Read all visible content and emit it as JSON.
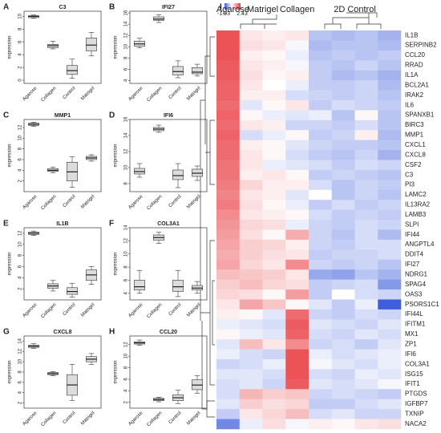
{
  "chart_data": [
    {
      "type": "box",
      "label": "A",
      "title": "C3",
      "ylabel": "expression",
      "categories": [
        "Agarose",
        "Collagen",
        "Control",
        "Matrigel"
      ],
      "ylim": [
        -0.5,
        10.8
      ],
      "yticks": [
        0,
        2,
        4,
        6,
        8,
        10
      ],
      "boxes": [
        {
          "min": 9.7,
          "q1": 9.8,
          "median": 10,
          "q3": 10.1,
          "max": 10.2
        },
        {
          "min": 4.9,
          "q1": 5.1,
          "median": 5.4,
          "q3": 5.6,
          "max": 6.1
        },
        {
          "min": 0.3,
          "q1": 0.9,
          "median": 1.5,
          "q3": 2.3,
          "max": 3.3
        },
        {
          "min": 3.8,
          "q1": 4.6,
          "median": 5.5,
          "q3": 6.6,
          "max": 7.5
        }
      ]
    },
    {
      "type": "box",
      "label": "B",
      "title": "IFI27",
      "ylabel": "expression",
      "categories": [
        "Agarose",
        "Collagen",
        "Control",
        "Matrigel"
      ],
      "ylim": [
        3.5,
        16.3
      ],
      "yticks": [
        4,
        6,
        8,
        10,
        12,
        14,
        16
      ],
      "boxes": [
        {
          "min": 9.8,
          "q1": 10.1,
          "median": 10.5,
          "q3": 11,
          "max": 11.5
        },
        {
          "min": 14.3,
          "q1": 14.7,
          "median": 14.9,
          "q3": 15.3,
          "max": 15.7
        },
        {
          "min": 4.5,
          "q1": 5,
          "median": 5.6,
          "q3": 6.5,
          "max": 7.5
        },
        {
          "min": 4.8,
          "q1": 5.2,
          "median": 5.5,
          "q3": 6.3,
          "max": 6.9
        }
      ]
    },
    {
      "type": "box",
      "label": "C",
      "title": "MMP1",
      "ylabel": "expression",
      "categories": [
        "Agarose",
        "Collagen",
        "Control",
        "Matrigel"
      ],
      "ylim": [
        0,
        13.5
      ],
      "yticks": [
        2,
        4,
        6,
        8,
        10,
        12
      ],
      "boxes": [
        {
          "min": 12.2,
          "q1": 12.4,
          "median": 12.6,
          "q3": 12.8,
          "max": 13
        },
        {
          "min": 3.5,
          "q1": 3.8,
          "median": 4,
          "q3": 4.3,
          "max": 4.6
        },
        {
          "min": 0.8,
          "q1": 2,
          "median": 3.7,
          "q3": 5.5,
          "max": 6.5
        },
        {
          "min": 5.7,
          "q1": 6,
          "median": 6.3,
          "q3": 6.6,
          "max": 6.9
        }
      ]
    },
    {
      "type": "box",
      "label": "D",
      "title": "IFI6",
      "ylabel": "expression",
      "categories": [
        "Agarose",
        "Collagen",
        "Control",
        "Matrigel"
      ],
      "ylim": [
        7,
        16
      ],
      "yticks": [
        8,
        10,
        12,
        14,
        16
      ],
      "boxes": [
        {
          "min": 8.8,
          "q1": 9.2,
          "median": 9.5,
          "q3": 9.9,
          "max": 10.5
        },
        {
          "min": 14.4,
          "q1": 14.6,
          "median": 14.8,
          "q3": 15,
          "max": 15.3
        },
        {
          "min": 7.5,
          "q1": 8.5,
          "median": 9,
          "q3": 9.7,
          "max": 10.5
        },
        {
          "min": 8.4,
          "q1": 8.9,
          "median": 9.3,
          "q3": 9.8,
          "max": 10.2
        }
      ]
    },
    {
      "type": "box",
      "label": "E",
      "title": "IL1B",
      "ylabel": "expression",
      "categories": [
        "Agarose",
        "Collagen",
        "Control",
        "Matrigel"
      ],
      "ylim": [
        0,
        13
      ],
      "yticks": [
        2,
        4,
        6,
        8,
        10,
        12
      ],
      "boxes": [
        {
          "min": 11.6,
          "q1": 11.8,
          "median": 12,
          "q3": 12.2,
          "max": 12.4
        },
        {
          "min": 1.6,
          "q1": 2.1,
          "median": 2.5,
          "q3": 2.9,
          "max": 3.5
        },
        {
          "min": 0.5,
          "q1": 1,
          "median": 1.5,
          "q3": 2.2,
          "max": 3
        },
        {
          "min": 2.8,
          "q1": 3.5,
          "median": 4.5,
          "q3": 5.4,
          "max": 6
        }
      ]
    },
    {
      "type": "box",
      "label": "F",
      "title": "COL3A1",
      "ylabel": "expression",
      "categories": [
        "Agarose",
        "Collagen",
        "Control",
        "Matrigel"
      ],
      "ylim": [
        3,
        14
      ],
      "yticks": [
        4,
        6,
        8,
        10,
        12,
        14
      ],
      "boxes": [
        {
          "min": 4,
          "q1": 4.5,
          "median": 5,
          "q3": 6,
          "max": 7.5
        },
        {
          "min": 11.6,
          "q1": 12.1,
          "median": 12.5,
          "q3": 12.9,
          "max": 13.3
        },
        {
          "min": 3.5,
          "q1": 4.3,
          "median": 5,
          "q3": 6,
          "max": 7.5
        },
        {
          "min": 4,
          "q1": 4.5,
          "median": 4.8,
          "q3": 5.2,
          "max": 5.8
        }
      ]
    },
    {
      "type": "box",
      "label": "G",
      "title": "CXCL8",
      "ylabel": "expression",
      "categories": [
        "Agarose",
        "Collagen",
        "Control",
        "Matrigel"
      ],
      "ylim": [
        1,
        15
      ],
      "yticks": [
        2,
        4,
        6,
        8,
        10,
        12,
        14
      ],
      "boxes": [
        {
          "min": 12.6,
          "q1": 12.8,
          "median": 13,
          "q3": 13.2,
          "max": 13.5
        },
        {
          "min": 7.3,
          "q1": 7.5,
          "median": 7.7,
          "q3": 7.9,
          "max": 8.1
        },
        {
          "min": 2.5,
          "q1": 3.5,
          "median": 5.5,
          "q3": 7.5,
          "max": 9.5
        },
        {
          "min": 9.5,
          "q1": 10,
          "median": 10.5,
          "q3": 11,
          "max": 11.6
        }
      ]
    },
    {
      "type": "box",
      "label": "H",
      "title": "CCL20",
      "ylabel": "expression",
      "categories": [
        "Agarose",
        "Collagen",
        "Control",
        "Matrigel"
      ],
      "ylim": [
        1,
        13.5
      ],
      "yticks": [
        2,
        4,
        6,
        8,
        10,
        12
      ],
      "boxes": [
        {
          "min": 11.9,
          "q1": 12.1,
          "median": 12.3,
          "q3": 12.5,
          "max": 12.8
        },
        {
          "min": 2.1,
          "q1": 2.3,
          "median": 2.5,
          "q3": 2.7,
          "max": 2.9
        },
        {
          "min": 1.8,
          "q1": 2.3,
          "median": 2.8,
          "q3": 3.3,
          "max": 4.1
        },
        {
          "min": 3.6,
          "q1": 4.2,
          "median": 5,
          "q3": 5.9,
          "max": 6.6
        }
      ]
    },
    {
      "type": "heatmap",
      "label": "I",
      "groups": [
        "Agarose",
        "Matrigel",
        "Collagen",
        "2D Control"
      ],
      "zlim": [
        -1.93,
        2.43
      ],
      "rows": [
        "IL1B",
        "SERPINB2",
        "CCL20",
        "RRAD",
        "IL1A",
        "BCL2A1",
        "IRAK2",
        "IL6",
        "SPANXB1",
        "BIRC3",
        "MMP1",
        "CXCL1",
        "CXCL8",
        "CSF2",
        "C3",
        "PI3",
        "LAMC2",
        "IL13RA2",
        "LAMB3",
        "SLPI",
        "IFI44",
        "ANGPTL4",
        "DDIT4",
        "IFI27",
        "NDRG1",
        "SPAG4",
        "OAS3",
        "PSORS1C1",
        "IFI44L",
        "IFITM1",
        "MX1",
        "ZP1",
        "IFI6",
        "COL3A1",
        "ISG15",
        "IFIT1",
        "PTGDS",
        "IGFBP7",
        "TXNIP",
        "NACA2"
      ],
      "values": [
        [
          2.1,
          0.3,
          0.2,
          0.3,
          -0.7,
          -0.8,
          -0.7,
          -0.9
        ],
        [
          2.1,
          0.4,
          0.3,
          -0.1,
          -0.8,
          -0.7,
          -0.7,
          -0.8
        ],
        [
          2.1,
          0.2,
          0.1,
          -0.2,
          -0.7,
          -0.6,
          -0.7,
          -0.6
        ],
        [
          2.0,
          0.3,
          0.2,
          -0.1,
          -0.6,
          -0.7,
          -0.5,
          -0.7
        ],
        [
          2.0,
          0.4,
          0.1,
          0.2,
          -0.6,
          -0.8,
          -0.7,
          -0.9
        ],
        [
          1.9,
          0.3,
          0,
          -0.2,
          -0.6,
          -0.6,
          -0.5,
          -0.8
        ],
        [
          1.9,
          0.2,
          0.2,
          -0.4,
          -0.5,
          -0.6,
          -0.5,
          -0.7
        ],
        [
          1.8,
          -0.3,
          0.1,
          0.3,
          -0.6,
          -0.4,
          -0.5,
          -0.6
        ],
        [
          1.9,
          0.1,
          -0.2,
          -0.3,
          -0.2,
          -0.7,
          0.1,
          -0.7
        ],
        [
          1.8,
          0.3,
          0.2,
          -0.5,
          -0.5,
          -0.6,
          -0.4,
          -0.7
        ],
        [
          1.9,
          -0.4,
          -0.2,
          0.1,
          -0.6,
          -0.5,
          0.2,
          -0.8
        ],
        [
          1.8,
          0.2,
          0.1,
          -0.3,
          -0.5,
          -0.6,
          -0.6,
          -0.7
        ],
        [
          1.8,
          0.3,
          0.1,
          -0.4,
          -0.6,
          -0.7,
          -0.5,
          -0.9
        ],
        [
          1.7,
          0.3,
          -0.2,
          -0.3,
          -0.4,
          -0.6,
          -0.4,
          -0.5
        ],
        [
          1.7,
          0.2,
          0.3,
          0.1,
          -0.6,
          -0.5,
          -0.6,
          -0.7
        ],
        [
          1.6,
          0.5,
          0.2,
          0.2,
          -0.4,
          -0.7,
          -0.5,
          -0.6
        ],
        [
          1.5,
          0.3,
          0.2,
          -0.3,
          0,
          -0.7,
          -0.5,
          -0.7
        ],
        [
          1.6,
          0.4,
          0.1,
          -0.2,
          -0.6,
          -0.4,
          -0.6,
          -0.5
        ],
        [
          1.4,
          0.3,
          0.2,
          0.1,
          -0.4,
          -0.6,
          -0.5,
          -0.6
        ],
        [
          1.3,
          0.5,
          0.4,
          -0.2,
          -0.5,
          -0.6,
          -0.4,
          -0.5
        ],
        [
          1.2,
          0.4,
          0.1,
          1.0,
          -0.5,
          -0.7,
          -0.4,
          -0.8
        ],
        [
          1.1,
          0.6,
          0.5,
          0.2,
          -0.5,
          -0.6,
          -0.4,
          -0.4
        ],
        [
          1.0,
          0.6,
          0.4,
          0.3,
          -0.6,
          -0.5,
          -0.5,
          -0.4
        ],
        [
          1.1,
          0.5,
          0.3,
          1.4,
          -0.5,
          -0.6,
          -0.5,
          -0.7
        ],
        [
          0.8,
          0.7,
          0.6,
          0.3,
          -1.0,
          -1.1,
          -0.7,
          -0.9
        ],
        [
          0.6,
          0.8,
          0.5,
          0.4,
          -0.6,
          -0.5,
          -0.4,
          -1.2
        ],
        [
          0.5,
          0.4,
          0.1,
          1.2,
          -0.6,
          0,
          -0.4,
          -0.5
        ],
        [
          0.3,
          1.1,
          0.7,
          0.1,
          -0.3,
          -0.6,
          -0.2,
          -1.9
        ],
        [
          0.2,
          0.1,
          -0.3,
          1.8,
          -0.5,
          -0.6,
          -0.4,
          -0.5
        ],
        [
          -0.2,
          -0.3,
          -0.4,
          2.0,
          -0.3,
          -0.4,
          -0.5,
          -0.3
        ],
        [
          0.1,
          -0.2,
          -0.3,
          1.9,
          -0.4,
          -0.5,
          -0.3,
          -0.4
        ],
        [
          -0.3,
          0.8,
          0.3,
          1.4,
          -0.5,
          -0.4,
          -0.6,
          -0.3
        ],
        [
          -0.2,
          -0.4,
          -0.5,
          2.1,
          -0.2,
          -0.4,
          -0.3,
          -0.2
        ],
        [
          -0.5,
          -0.4,
          -0.2,
          2.1,
          -0.1,
          -0.3,
          -0.4,
          -0.2
        ],
        [
          -0.3,
          -0.3,
          -0.4,
          2.1,
          -0.4,
          -0.5,
          -0.2,
          -0.3
        ],
        [
          -0.4,
          -0.3,
          -0.5,
          2.0,
          -0.3,
          -0.4,
          -0.3,
          -0.1
        ],
        [
          -0.4,
          0.9,
          0.6,
          0.7,
          -0.5,
          -0.4,
          -0.5,
          -0.6
        ],
        [
          -0.3,
          0.6,
          0.4,
          0.5,
          -0.6,
          -0.6,
          -0.4,
          -0.3
        ],
        [
          -0.6,
          0.3,
          0.5,
          0.8,
          -0.4,
          -0.3,
          -0.5,
          -0.5
        ],
        [
          -1.4,
          -0.2,
          0.4,
          -0.1,
          0.2,
          0.1,
          0.3,
          0.4
        ]
      ]
    }
  ]
}
